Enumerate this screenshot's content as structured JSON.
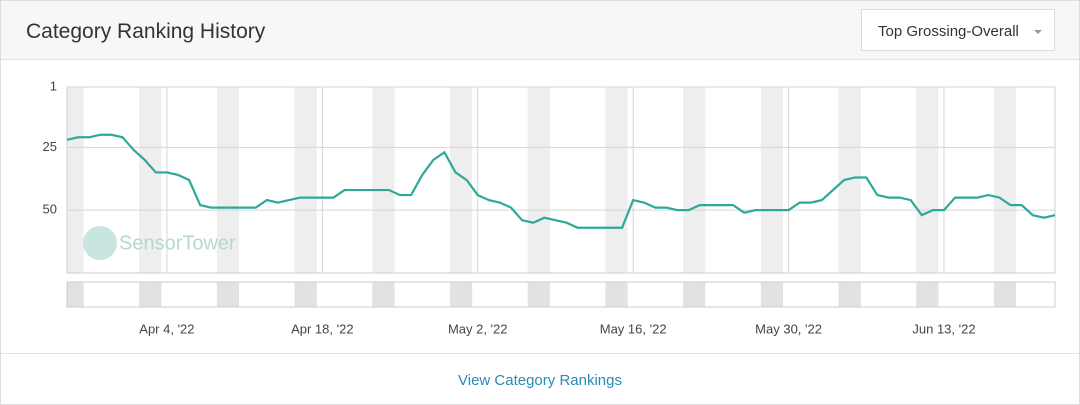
{
  "header": {
    "title": "Category Ranking History",
    "dropdown": "Top Grossing-Overall"
  },
  "footer": {
    "link": "View Category Rankings"
  },
  "chart_data": {
    "type": "line",
    "watermark": "SensorTower",
    "inverted": true,
    "grid": true,
    "x": [
      "2022-03-26",
      "2022-03-27",
      "2022-03-28",
      "2022-03-29",
      "2022-03-30",
      "2022-03-31",
      "2022-04-01",
      "2022-04-02",
      "2022-04-03",
      "2022-04-04",
      "2022-04-05",
      "2022-04-06",
      "2022-04-07",
      "2022-04-08",
      "2022-04-09",
      "2022-04-10",
      "2022-04-11",
      "2022-04-12",
      "2022-04-13",
      "2022-04-14",
      "2022-04-15",
      "2022-04-16",
      "2022-04-17",
      "2022-04-18",
      "2022-04-19",
      "2022-04-20",
      "2022-04-21",
      "2022-04-22",
      "2022-04-23",
      "2022-04-24",
      "2022-04-25",
      "2022-04-26",
      "2022-04-27",
      "2022-04-28",
      "2022-04-29",
      "2022-04-30",
      "2022-05-01",
      "2022-05-02",
      "2022-05-03",
      "2022-05-04",
      "2022-05-05",
      "2022-05-06",
      "2022-05-07",
      "2022-05-08",
      "2022-05-09",
      "2022-05-10",
      "2022-05-11",
      "2022-05-12",
      "2022-05-13",
      "2022-05-14",
      "2022-05-15",
      "2022-05-16",
      "2022-05-17",
      "2022-05-18",
      "2022-05-19",
      "2022-05-20",
      "2022-05-21",
      "2022-05-22",
      "2022-05-23",
      "2022-05-24",
      "2022-05-25",
      "2022-05-26",
      "2022-05-27",
      "2022-05-28",
      "2022-05-29",
      "2022-05-30",
      "2022-05-31",
      "2022-06-01",
      "2022-06-02",
      "2022-06-03",
      "2022-06-04",
      "2022-06-05",
      "2022-06-06",
      "2022-06-07",
      "2022-06-08",
      "2022-06-09",
      "2022-06-10",
      "2022-06-11",
      "2022-06-12",
      "2022-06-13",
      "2022-06-14",
      "2022-06-15",
      "2022-06-16",
      "2022-06-17",
      "2022-06-18",
      "2022-06-19",
      "2022-06-20",
      "2022-06-21",
      "2022-06-22",
      "2022-06-23"
    ],
    "series": [
      {
        "color": "#2ea898",
        "values": [
          22,
          21,
          21,
          20,
          20,
          21,
          26,
          30,
          35,
          35,
          36,
          38,
          48,
          49,
          49,
          49,
          49,
          49,
          46,
          47,
          46,
          45,
          45,
          45,
          45,
          42,
          42,
          42,
          42,
          42,
          44,
          44,
          36,
          30,
          27,
          35,
          38,
          44,
          46,
          47,
          49,
          54,
          55,
          53,
          54,
          55,
          57,
          57,
          57,
          57,
          57,
          46,
          47,
          49,
          49,
          50,
          50,
          48,
          48,
          48,
          48,
          51,
          50,
          50,
          50,
          50,
          47,
          47,
          46,
          42,
          38,
          37,
          37,
          44,
          45,
          45,
          46,
          52,
          50,
          50,
          45,
          45,
          45,
          44,
          45,
          48,
          48,
          52,
          53,
          52
        ]
      }
    ],
    "xlim": [
      "2022-03-26",
      "2022-06-23"
    ],
    "xticks": [
      {
        "value": "2022-04-04",
        "label": "Apr 4, '22"
      },
      {
        "value": "2022-04-18",
        "label": "Apr 18, '22"
      },
      {
        "value": "2022-05-02",
        "label": "May 2, '22"
      },
      {
        "value": "2022-05-16",
        "label": "May 16, '22"
      },
      {
        "value": "2022-05-30",
        "label": "May 30, '22"
      },
      {
        "value": "2022-06-13",
        "label": "Jun 13, '22"
      }
    ],
    "ylim": [
      1,
      75
    ],
    "yticks": [
      1,
      25,
      50
    ]
  }
}
